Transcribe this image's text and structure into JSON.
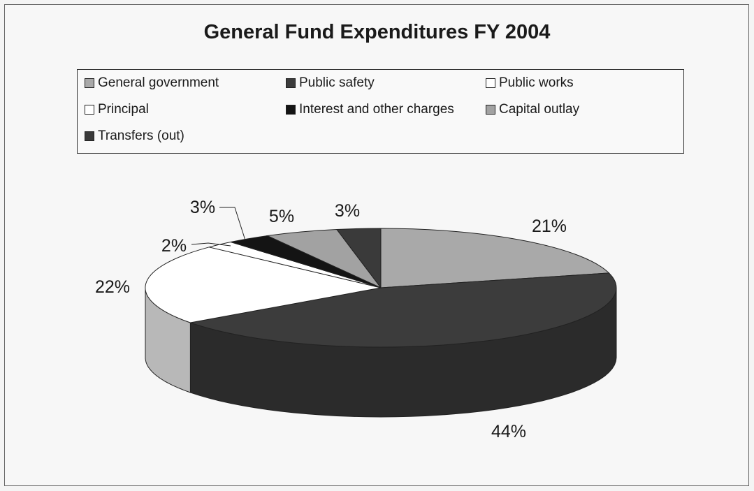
{
  "chart_data": {
    "type": "pie",
    "title": "General Fund Expenditures FY 2004",
    "legend_position": "top",
    "slices": [
      {
        "name": "General government",
        "value": 21,
        "label": "21%",
        "color": "#a9a9a9"
      },
      {
        "name": "Public safety",
        "value": 44,
        "label": "44%",
        "color": "#3c3c3c"
      },
      {
        "name": "Public works",
        "value": 22,
        "label": "22%",
        "color": "#ffffff"
      },
      {
        "name": "Principal",
        "value": 2,
        "label": "2%",
        "color": "#ffffff"
      },
      {
        "name": "Interest and other charges",
        "value": 3,
        "label": "3%",
        "color": "#141414"
      },
      {
        "name": "Capital outlay",
        "value": 5,
        "label": "5%",
        "color": "#a2a2a2"
      },
      {
        "name": "Transfers (out)",
        "value": 3,
        "label": "3%",
        "color": "#3a3a3a"
      }
    ]
  }
}
